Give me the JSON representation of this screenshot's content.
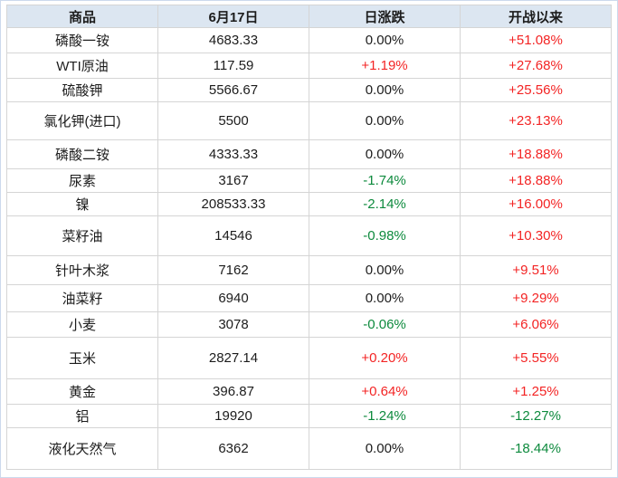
{
  "chart_data": {
    "type": "table",
    "columns": [
      "商品",
      "6月17日",
      "日涨跌",
      "开战以来"
    ],
    "rows": [
      {
        "commodity": "磷酸一铵",
        "price": "4683.33",
        "daily_change": "0.00%",
        "since_war_start": "+51.08%"
      },
      {
        "commodity": "WTI原油",
        "price": "117.59",
        "daily_change": "+1.19%",
        "since_war_start": "+27.68%"
      },
      {
        "commodity": "硫酸钾",
        "price": "5566.67",
        "daily_change": "0.00%",
        "since_war_start": "+25.56%"
      },
      {
        "commodity": "氯化钾(进口)",
        "price": "5500",
        "daily_change": "0.00%",
        "since_war_start": "+23.13%"
      },
      {
        "commodity": "磷酸二铵",
        "price": "4333.33",
        "daily_change": "0.00%",
        "since_war_start": "+18.88%"
      },
      {
        "commodity": "尿素",
        "price": "3167",
        "daily_change": "-1.74%",
        "since_war_start": "+18.88%"
      },
      {
        "commodity": "镍",
        "price": "208533.33",
        "daily_change": "-2.14%",
        "since_war_start": "+16.00%"
      },
      {
        "commodity": "菜籽油",
        "price": "14546",
        "daily_change": "-0.98%",
        "since_war_start": "+10.30%"
      },
      {
        "commodity": "针叶木浆",
        "price": "7162",
        "daily_change": "0.00%",
        "since_war_start": "+9.51%"
      },
      {
        "commodity": "油菜籽",
        "price": "6940",
        "daily_change": "0.00%",
        "since_war_start": "+9.29%"
      },
      {
        "commodity": "小麦",
        "price": "3078",
        "daily_change": "-0.06%",
        "since_war_start": "+6.06%"
      },
      {
        "commodity": "玉米",
        "price": "2827.14",
        "daily_change": "+0.20%",
        "since_war_start": "+5.55%"
      },
      {
        "commodity": "黄金",
        "price": "396.87",
        "daily_change": "+0.64%",
        "since_war_start": "+1.25%"
      },
      {
        "commodity": "铝",
        "price": "19920",
        "daily_change": "-1.24%",
        "since_war_start": "-12.27%"
      },
      {
        "commodity": "液化天然气",
        "price": "6362",
        "daily_change": "0.00%",
        "since_war_start": "-18.44%"
      }
    ]
  },
  "colors": {
    "positive": "#f32424",
    "negative": "#0d8a3d",
    "neutral": "#1c1c1c",
    "header_bg": "#dce6f1",
    "border": "#d5d5d5"
  }
}
